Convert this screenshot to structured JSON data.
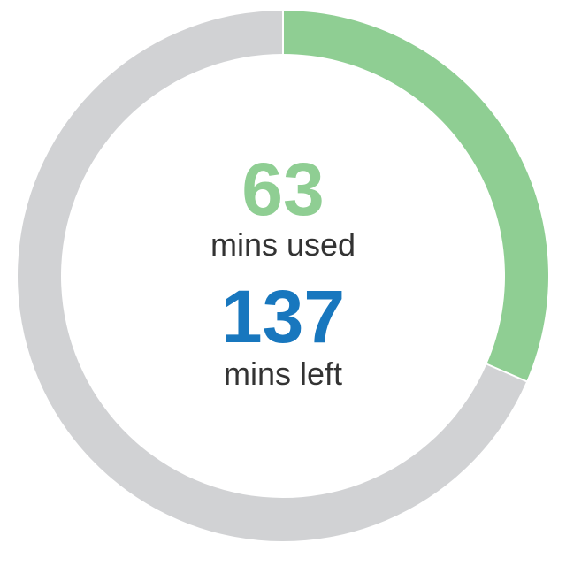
{
  "chart_data": {
    "type": "pie",
    "categories": [
      "mins used",
      "mins left"
    ],
    "values": [
      63,
      137
    ],
    "colors": {
      "used": "#8fce93",
      "left": "#d1d2d4",
      "used_text": "#8fce93",
      "left_text": "#1877be",
      "divider": "#ffffff"
    },
    "used": {
      "value": "63",
      "label": "mins used"
    },
    "left": {
      "value": "137",
      "label": "mins left"
    }
  }
}
